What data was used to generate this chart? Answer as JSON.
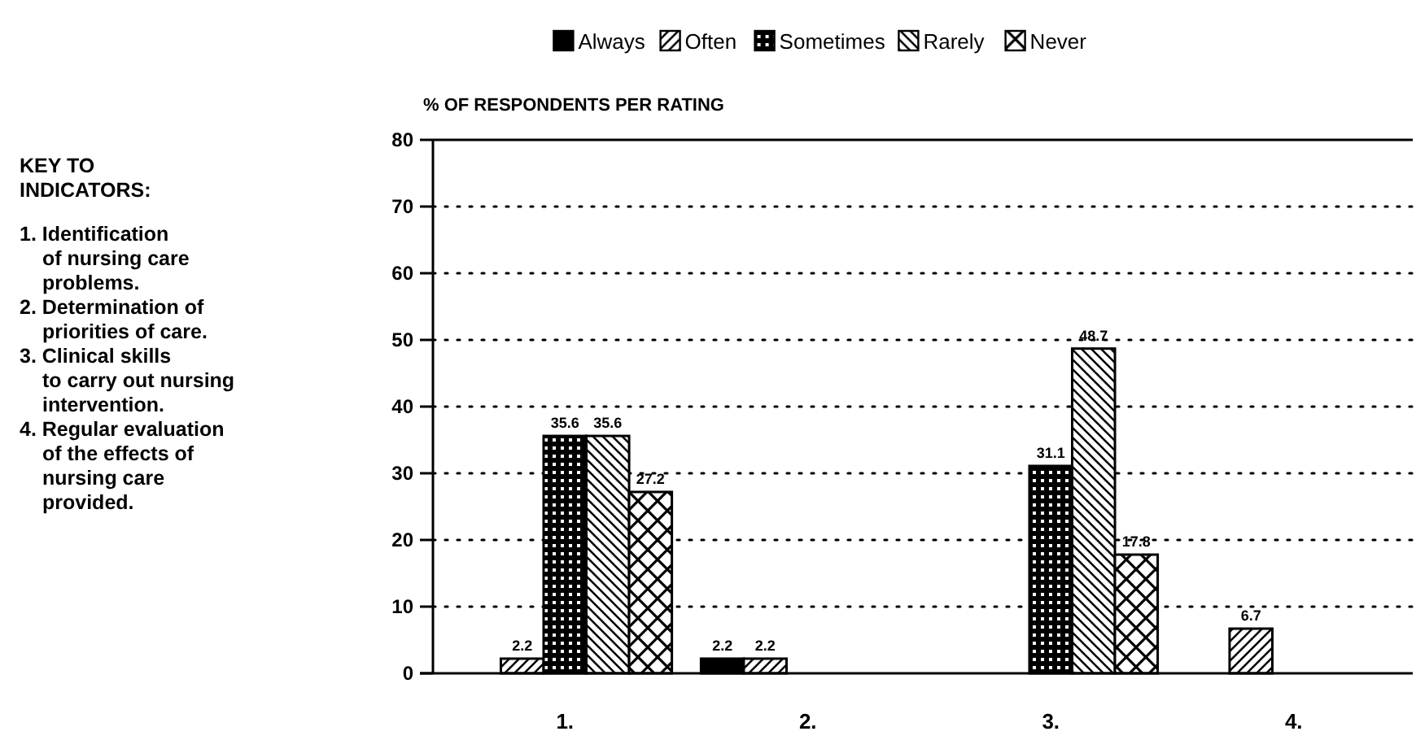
{
  "chart_data": {
    "type": "bar",
    "ylabel": "% OF RESPONDENTS PER RATING",
    "categories": [
      "1.",
      "2.",
      "3.",
      "4."
    ],
    "series": [
      {
        "name": "Always",
        "color": "#000000",
        "values": [
          null,
          2.2,
          null,
          null
        ]
      },
      {
        "name": "Often",
        "color": "#000000",
        "values": [
          2.2,
          2.2,
          null,
          6.7
        ]
      },
      {
        "name": "Sometimes",
        "color": "#000000",
        "values": [
          35.6,
          null,
          31.1,
          null
        ]
      },
      {
        "name": "Rarely",
        "color": "#000000",
        "values": [
          35.6,
          null,
          48.7,
          null
        ]
      },
      {
        "name": "Never",
        "color": "#000000",
        "values": [
          27.2,
          null,
          17.8,
          null
        ]
      }
    ],
    "ylim": [
      0,
      80
    ],
    "yticks": [
      0,
      10,
      20,
      30,
      40,
      50,
      60,
      70,
      80
    ],
    "grid": "y",
    "legend": "top",
    "data_labels": true,
    "annotations": [
      "KEY TO\nINDICATORS:",
      "1. Identification\n   of nursing care\n   problems.",
      "2. Determination of\n   priorities of care.",
      "3. Clinical skills\n   to carry out nursing\n   intervention.",
      "4. Regular evaluation\n   of the effects of\n   nursing care\n   provided."
    ]
  }
}
